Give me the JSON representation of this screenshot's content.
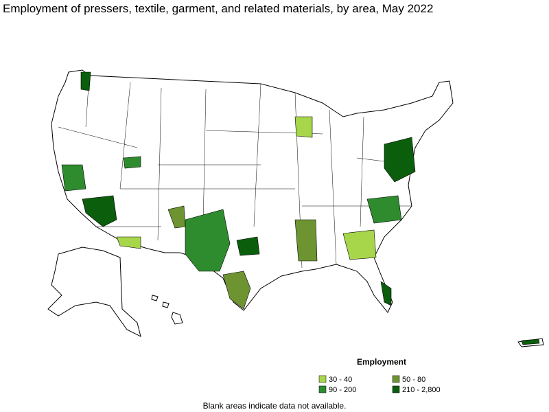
{
  "title": "Employment of pressers, textile, garment, and related materials, by area, May 2022",
  "legend": {
    "title": "Employment",
    "items": [
      {
        "label": "30 - 40",
        "color": "#a8d64a"
      },
      {
        "label": "50 - 80",
        "color": "#6e9432"
      },
      {
        "label": "90 - 200",
        "color": "#2e8c2e"
      },
      {
        "label": "210 - 2,800",
        "color": "#0b5e0b"
      }
    ]
  },
  "note": "Blank areas indicate data not available."
}
